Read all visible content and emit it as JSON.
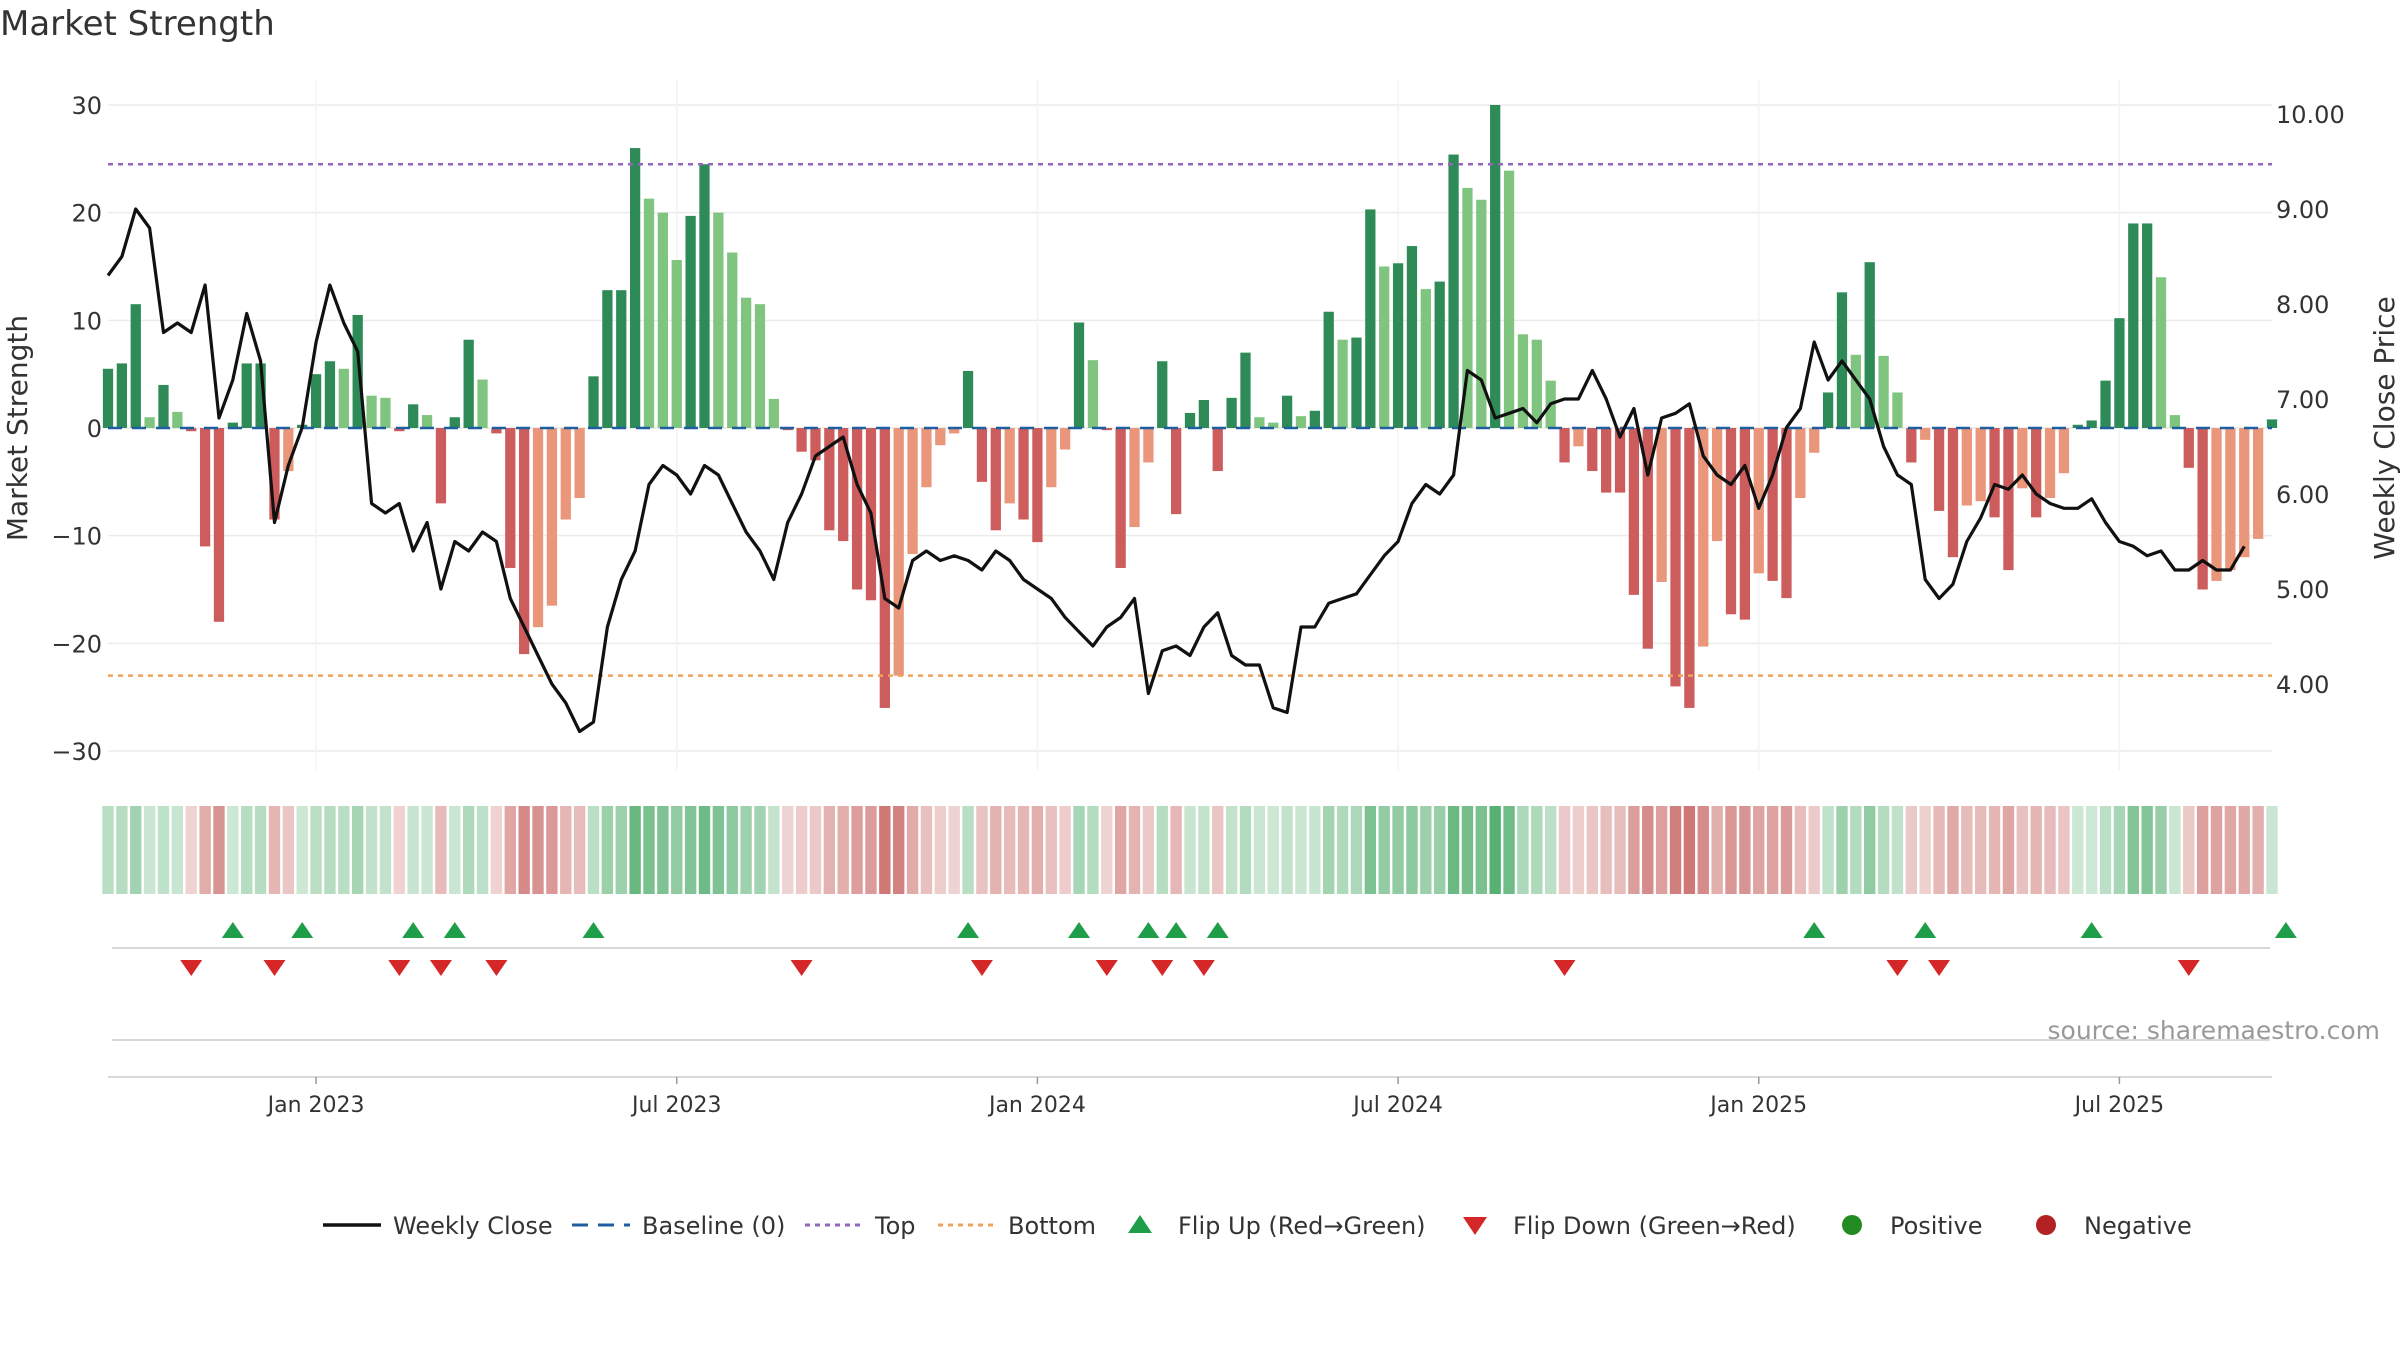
{
  "chart_data": {
    "type": "bar",
    "title": "Market Strength",
    "ylabel": "Market Strength",
    "y2label": "Weekly Close Price",
    "ylim": [
      -33,
      30
    ],
    "y2lim": [
      3.1,
      10.1
    ],
    "yticks": [
      30,
      20,
      10,
      0,
      -10,
      -20,
      -30
    ],
    "yticklabels": [
      "30",
      "20",
      "10",
      "0",
      "−10",
      "−20",
      "−30"
    ],
    "y2ticks": [
      10,
      9,
      8,
      7,
      6,
      5,
      4
    ],
    "y2ticklabels": [
      "10.00",
      "9.00",
      "8.00",
      "7.00",
      "6.00",
      "5.00",
      "4.00"
    ],
    "xticks": [
      {
        "index": 15,
        "label": "Jan 2023"
      },
      {
        "index": 41,
        "label": "Jul 2023"
      },
      {
        "index": 67,
        "label": "Jan 2024"
      },
      {
        "index": 93,
        "label": "Jul 2024"
      },
      {
        "index": 119,
        "label": "Jan 2025"
      },
      {
        "index": 145,
        "label": "Jul 2025"
      }
    ],
    "top_level": 24.5,
    "bottom_level": -23,
    "series": [
      {
        "name": "Market Strength",
        "values": [
          5.5,
          6,
          11.5,
          1,
          4,
          1.5,
          -0.3,
          -11,
          -18,
          0.5,
          6,
          6,
          -8.5,
          -4,
          0.3,
          5,
          6.2,
          5.5,
          10.5,
          3,
          2.8,
          -0.3,
          2.2,
          1.2,
          -7,
          1,
          8.2,
          4.5,
          -0.5,
          -13,
          -21,
          -18.5,
          -16.5,
          -8.5,
          -6.5,
          4.8,
          12.8,
          12.8,
          26,
          21.3,
          20,
          15.6,
          19.7,
          24.5,
          20,
          16.3,
          12.1,
          11.5,
          2.7,
          -0.2,
          -2.2,
          -3,
          -9.5,
          -10.5,
          -15,
          -16,
          -26,
          -23,
          -11.7,
          -5.5,
          -1.6,
          -0.5,
          5.3,
          -5,
          -9.5,
          -7,
          -8.5,
          -10.6,
          -5.5,
          -2,
          9.8,
          6.3,
          -0.2,
          -13,
          -9.2,
          -3.2,
          6.2,
          -8,
          1.4,
          2.6,
          -4,
          2.8,
          7,
          1,
          0.5,
          3,
          1.1,
          1.6,
          10.8,
          8.2,
          8.4,
          20.3,
          15,
          15.3,
          16.9,
          12.9,
          13.6,
          25.4,
          22.3,
          21.2,
          30,
          23.9,
          8.7,
          8.2,
          4.4,
          -3.2,
          -1.7,
          -4,
          -6,
          -6,
          -15.5,
          -20.5,
          -14.3,
          -24,
          -26,
          -20.3,
          -10.5,
          -17.3,
          -17.8,
          -13.5,
          -14.2,
          -15.8,
          -6.5,
          -2.3,
          3.3,
          12.6,
          6.8,
          15.4,
          6.7,
          3.3,
          -3.2,
          -1.1,
          -7.7,
          -12,
          -7.2,
          -6.8,
          -8.3,
          -13.2,
          -5.6,
          -8.3,
          -6.5,
          -4.2,
          0.3,
          0.7,
          4.4,
          10.2,
          19,
          19,
          14,
          1.2,
          -3.7,
          -15,
          -14.2,
          -13.2,
          -12,
          -10.3,
          0.8
        ]
      },
      {
        "name": "Weekly Close",
        "values": [
          8.3,
          8.5,
          9.0,
          8.8,
          7.7,
          7.8,
          7.7,
          8.2,
          6.8,
          7.2,
          7.9,
          7.4,
          5.7,
          6.3,
          6.7,
          7.6,
          8.2,
          7.8,
          7.5,
          5.9,
          5.8,
          5.9,
          5.4,
          5.7,
          5.0,
          5.5,
          5.4,
          5.6,
          5.5,
          4.9,
          4.6,
          4.3,
          4.0,
          3.8,
          3.5,
          3.6,
          4.6,
          5.1,
          5.4,
          6.1,
          6.3,
          6.2,
          6.0,
          6.3,
          6.2,
          5.9,
          5.6,
          5.4,
          5.1,
          5.7,
          6.0,
          6.4,
          6.5,
          6.6,
          6.1,
          5.8,
          4.9,
          4.8,
          5.3,
          5.4,
          5.3,
          5.35,
          5.3,
          5.2,
          5.4,
          5.3,
          5.1,
          5.0,
          4.9,
          4.7,
          4.55,
          4.4,
          4.6,
          4.7,
          4.9,
          3.9,
          4.35,
          4.4,
          4.3,
          4.6,
          4.75,
          4.3,
          4.2,
          4.2,
          3.75,
          3.7,
          4.6,
          4.6,
          4.85,
          4.9,
          4.95,
          5.15,
          5.35,
          5.5,
          5.9,
          6.1,
          6.0,
          6.2,
          7.3,
          7.2,
          6.8,
          6.85,
          6.9,
          6.75,
          6.95,
          7.0,
          7.0,
          7.3,
          7.0,
          6.6,
          6.9,
          6.2,
          6.8,
          6.85,
          6.95,
          6.4,
          6.2,
          6.1,
          6.3,
          5.85,
          6.2,
          6.7,
          6.9,
          7.6,
          7.2,
          7.4,
          7.2,
          7.0,
          6.5,
          6.2,
          6.1,
          5.1,
          4.9,
          5.05,
          5.5,
          5.75,
          6.1,
          6.05,
          6.2,
          6.0,
          5.9,
          5.85,
          5.85,
          5.95,
          5.7,
          5.5,
          5.45,
          5.35,
          5.4,
          5.2,
          5.2,
          5.3,
          5.2,
          5.2,
          5.45
        ]
      },
      {
        "name": "Flip Up (Red→Green)",
        "indices": [
          9,
          14,
          22,
          25,
          35,
          62,
          70,
          75,
          77,
          80,
          123,
          131,
          143,
          157
        ]
      },
      {
        "name": "Flip Down (Green→Red)",
        "indices": [
          6,
          12,
          21,
          24,
          28,
          50,
          63,
          72,
          76,
          79,
          105,
          129,
          132,
          150
        ]
      }
    ],
    "colors": {
      "strong_green": "#2e8b57",
      "light_green": "#7fc47f",
      "strong_red": "#cd5c5c",
      "light_red": "#e9967a",
      "line": "#111111",
      "baseline": "#1f5f9f",
      "top": "#9467bd",
      "bottom": "#f0a35b",
      "flip_up": "#1f9e4a",
      "flip_down": "#d62728",
      "positive": "#228b22",
      "negative": "#b22222",
      "grid": "#ebebeb",
      "axis_text": "#333333",
      "source_text": "#999999"
    },
    "legend": [
      {
        "label": "Weekly Close",
        "kind": "line"
      },
      {
        "label": "Baseline (0)",
        "kind": "dash"
      },
      {
        "label": "Top",
        "kind": "dot-top"
      },
      {
        "label": "Bottom",
        "kind": "dot-bottom"
      },
      {
        "label": "Flip Up (Red→Green)",
        "kind": "tri-up"
      },
      {
        "label": "Flip Down (Green→Red)",
        "kind": "tri-down"
      },
      {
        "label": "Positive",
        "kind": "circle-pos"
      },
      {
        "label": "Negative",
        "kind": "circle-neg"
      }
    ],
    "source": "source: sharemaestro.com"
  }
}
